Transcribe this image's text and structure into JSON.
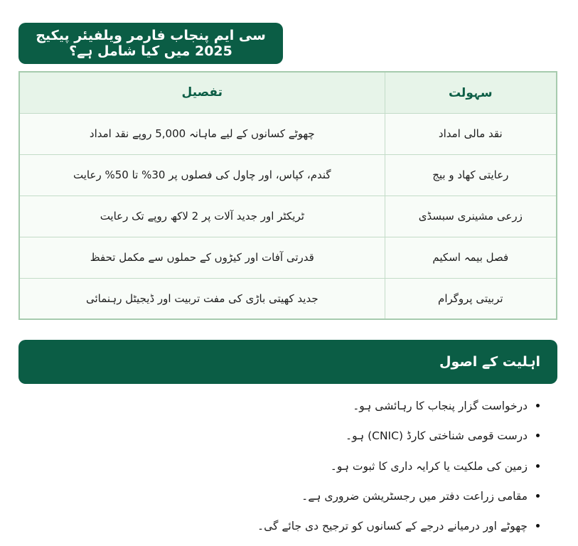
{
  "colors": {
    "primary_green": "#0b5d45",
    "table_header_bg": "#e7f4e9",
    "table_row_bg": "#f8fcf8",
    "table_border_outer": "#a6cbae",
    "table_border_inner": "#c3dcc8",
    "banner_text": "#ffffff",
    "body_text": "#1e1e1e"
  },
  "section1": {
    "title": "سی ایم پنجاب فارمر ویلفیئر پیکیج 2025 میں کیا شامل ہے؟"
  },
  "table": {
    "headers": {
      "facility": "سہولت",
      "detail": "تفصیل"
    },
    "rows": [
      {
        "facility": "نقد مالی امداد",
        "detail": "چھوٹے کسانوں کے لیے ماہانہ 5,000 روپے نقد امداد"
      },
      {
        "facility": "رعایتی کھاد و بیج",
        "detail": "گندم، کپاس، اور چاول کی فصلوں پر 30% تا 50% رعایت"
      },
      {
        "facility": "زرعی مشینری سبسڈی",
        "detail": "ٹریکٹر اور جدید آلات پر 2 لاکھ روپے تک رعایت"
      },
      {
        "facility": "فصل بیمہ اسکیم",
        "detail": "قدرتی آفات اور کیڑوں کے حملوں سے مکمل تحفظ"
      },
      {
        "facility": "تربیتی پروگرام",
        "detail": "جدید کھیتی باڑی کی مفت تربیت اور ڈیجیٹل رہنمائی"
      }
    ]
  },
  "section2": {
    "title": "اہلیت کے اصول",
    "bullets": [
      "درخواست گزار پنجاب کا رہائشی ہو۔",
      "درست قومی شناختی کارڈ (CNIC) ہو۔",
      "زمین کی ملکیت یا کرایہ داری کا ثبوت ہو۔",
      "مقامی زراعت دفتر میں رجسٹریشن ضروری ہے۔",
      "چھوٹے اور درمیانے درجے کے کسانوں کو ترجیح دی جائے گی۔"
    ]
  }
}
